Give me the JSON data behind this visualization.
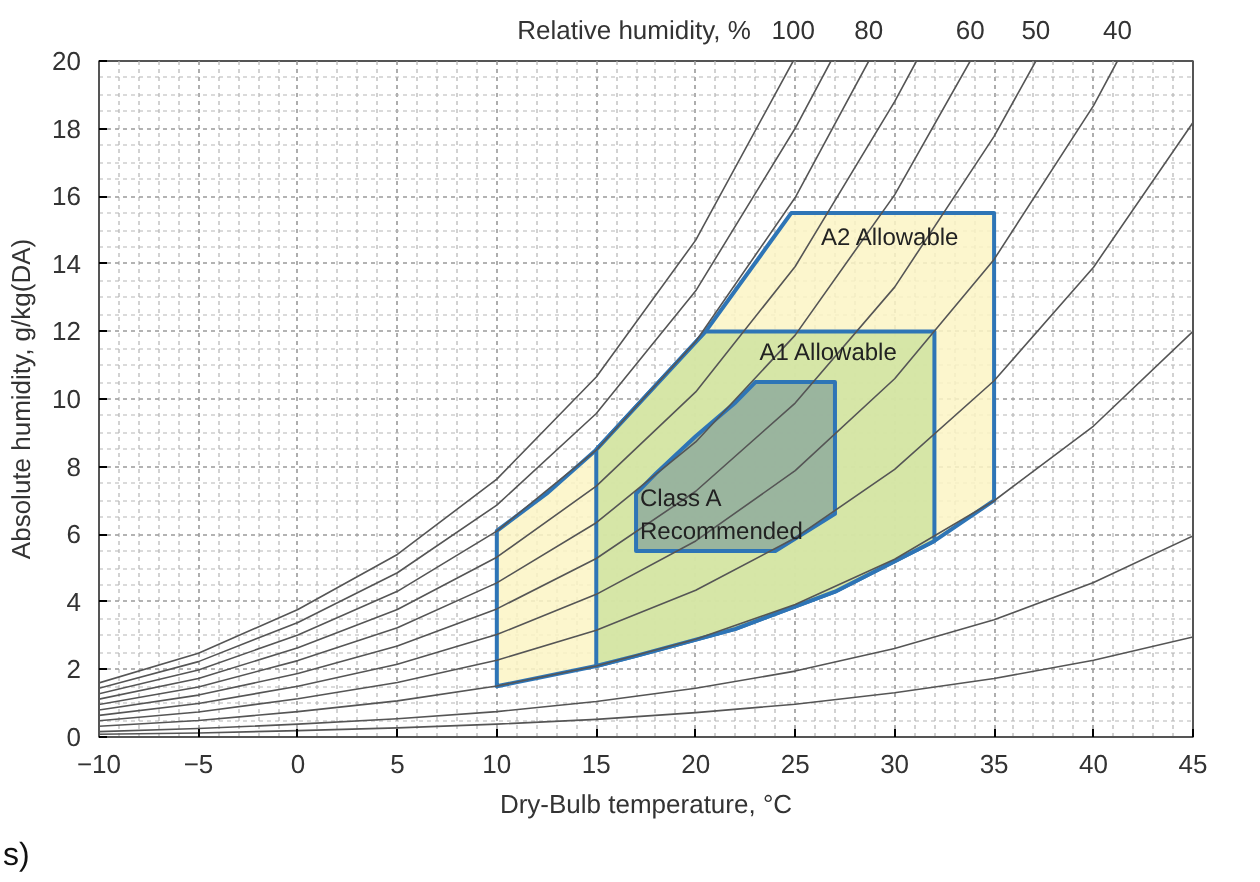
{
  "chart_data": {
    "type": "line",
    "xlabel": "Dry-Bulb temperature, °C",
    "ylabel": "Absolute humidity, g/kg(DA)",
    "legend_title": "Relative humidity, %",
    "xlim": [
      -10,
      45
    ],
    "ylim": [
      0,
      20
    ],
    "xticks": [
      -10,
      -5,
      0,
      5,
      10,
      15,
      20,
      25,
      30,
      35,
      40,
      45
    ],
    "yticks": [
      0,
      2,
      4,
      6,
      8,
      10,
      12,
      14,
      16,
      18,
      20
    ],
    "grid": true,
    "series": [
      {
        "type": "area",
        "color": "#fbf5c4",
        "x": [
          10,
          12.5,
          15,
          20.5,
          24.8,
          35,
          35,
          32,
          27,
          22,
          17,
          15,
          10
        ],
        "values": [
          6.1,
          7.2,
          8.5,
          12.0,
          15.5,
          15.5,
          7.0,
          5.8,
          4.3,
          3.2,
          2.4,
          2.1,
          1.5
        ]
      },
      {
        "type": "area",
        "color": "#cfe3a0",
        "x": [
          15,
          20.5,
          32,
          32,
          27,
          22,
          17,
          15
        ],
        "values": [
          8.5,
          12.0,
          12.0,
          5.8,
          4.3,
          3.2,
          2.4,
          2.1
        ]
      },
      {
        "type": "area",
        "color": "#8fab9c",
        "x": [
          17,
          18,
          20,
          22,
          23,
          27,
          27,
          24,
          17
        ],
        "values": [
          7.2,
          7.8,
          8.9,
          9.9,
          10.5,
          10.5,
          6.6,
          5.5,
          5.5
        ]
      },
      {
        "name": "100",
        "color": "#555555",
        "x": [
          -10,
          -5,
          0,
          5,
          10,
          15,
          20,
          24.9
        ],
        "values": [
          1.6,
          2.48,
          3.77,
          5.4,
          7.63,
          10.65,
          14.7,
          20.0
        ]
      },
      {
        "color": "#555555",
        "x": [
          -10,
          -5,
          0,
          5,
          10,
          15,
          20,
          25,
          26.8
        ],
        "values": [
          1.44,
          2.23,
          3.39,
          4.86,
          6.86,
          9.57,
          13.2,
          18.01,
          20.0
        ]
      },
      {
        "name": "80",
        "color": "#555555",
        "x": [
          -10,
          -5,
          0,
          5,
          10,
          15,
          20,
          25,
          28.7
        ],
        "values": [
          1.28,
          1.98,
          3.02,
          4.31,
          6.09,
          8.49,
          11.7,
          15.96,
          20.0
        ]
      },
      {
        "color": "#555555",
        "x": [
          -10,
          -5,
          0,
          5,
          10,
          15,
          20,
          25,
          30,
          31.1
        ],
        "values": [
          1.12,
          1.73,
          2.64,
          3.77,
          5.32,
          7.42,
          10.21,
          13.92,
          18.8,
          20.0
        ]
      },
      {
        "name": "60",
        "color": "#555555",
        "x": [
          -10,
          -5,
          0,
          5,
          10,
          15,
          20,
          25,
          30,
          33.8
        ],
        "values": [
          0.96,
          1.48,
          2.26,
          3.23,
          4.56,
          6.34,
          8.73,
          11.89,
          16.04,
          20.0
        ]
      },
      {
        "name": "50",
        "color": "#555555",
        "x": [
          -10,
          -5,
          0,
          5,
          10,
          15,
          20,
          25,
          30,
          35,
          37.1
        ],
        "values": [
          0.8,
          1.24,
          1.88,
          2.69,
          3.79,
          5.28,
          7.27,
          9.88,
          13.31,
          17.77,
          20.0
        ]
      },
      {
        "name": "40",
        "color": "#555555",
        "x": [
          -10,
          -5,
          0,
          5,
          10,
          15,
          20,
          25,
          30,
          35,
          40,
          41.2
        ],
        "values": [
          0.64,
          0.99,
          1.5,
          2.15,
          3.03,
          4.22,
          5.8,
          7.88,
          10.6,
          14.13,
          18.68,
          20.0
        ]
      },
      {
        "name": "30",
        "color": "#555555",
        "x": [
          -10,
          -5,
          0,
          5,
          10,
          15,
          20,
          25,
          30,
          35,
          40,
          45
        ],
        "values": [
          0.48,
          0.74,
          1.13,
          1.61,
          2.27,
          3.16,
          4.34,
          5.89,
          7.92,
          10.54,
          13.9,
          18.18
        ]
      },
      {
        "name": "20",
        "color": "#555555",
        "x": [
          -10,
          -5,
          0,
          5,
          10,
          15,
          20,
          25,
          30,
          35,
          40,
          45
        ],
        "values": [
          0.32,
          0.49,
          0.75,
          1.07,
          1.51,
          2.1,
          2.89,
          3.92,
          5.26,
          6.99,
          9.2,
          12.0
        ]
      },
      {
        "name": "10",
        "color": "#555555",
        "x": [
          -10,
          -5,
          0,
          5,
          10,
          15,
          20,
          25,
          30,
          35,
          40,
          45
        ],
        "values": [
          0.16,
          0.25,
          0.38,
          0.54,
          0.75,
          1.05,
          1.44,
          1.95,
          2.62,
          3.47,
          4.57,
          5.95
        ]
      },
      {
        "name": "5",
        "color": "#555555",
        "x": [
          -10,
          -5,
          0,
          5,
          10,
          15,
          20,
          25,
          30,
          35,
          40,
          45
        ],
        "values": [
          0.08,
          0.12,
          0.19,
          0.27,
          0.38,
          0.52,
          0.72,
          0.97,
          1.31,
          1.73,
          2.27,
          2.96
        ]
      }
    ],
    "annotations": [
      {
        "text": "A2 Allowable",
        "x": 26.3,
        "y": 15.2
      },
      {
        "text": "A1 Allowable",
        "x": 23.2,
        "y": 11.8
      },
      {
        "text": "Class A\nRecommended",
        "x": 17.2,
        "y": 7.5
      },
      "s)"
    ]
  }
}
